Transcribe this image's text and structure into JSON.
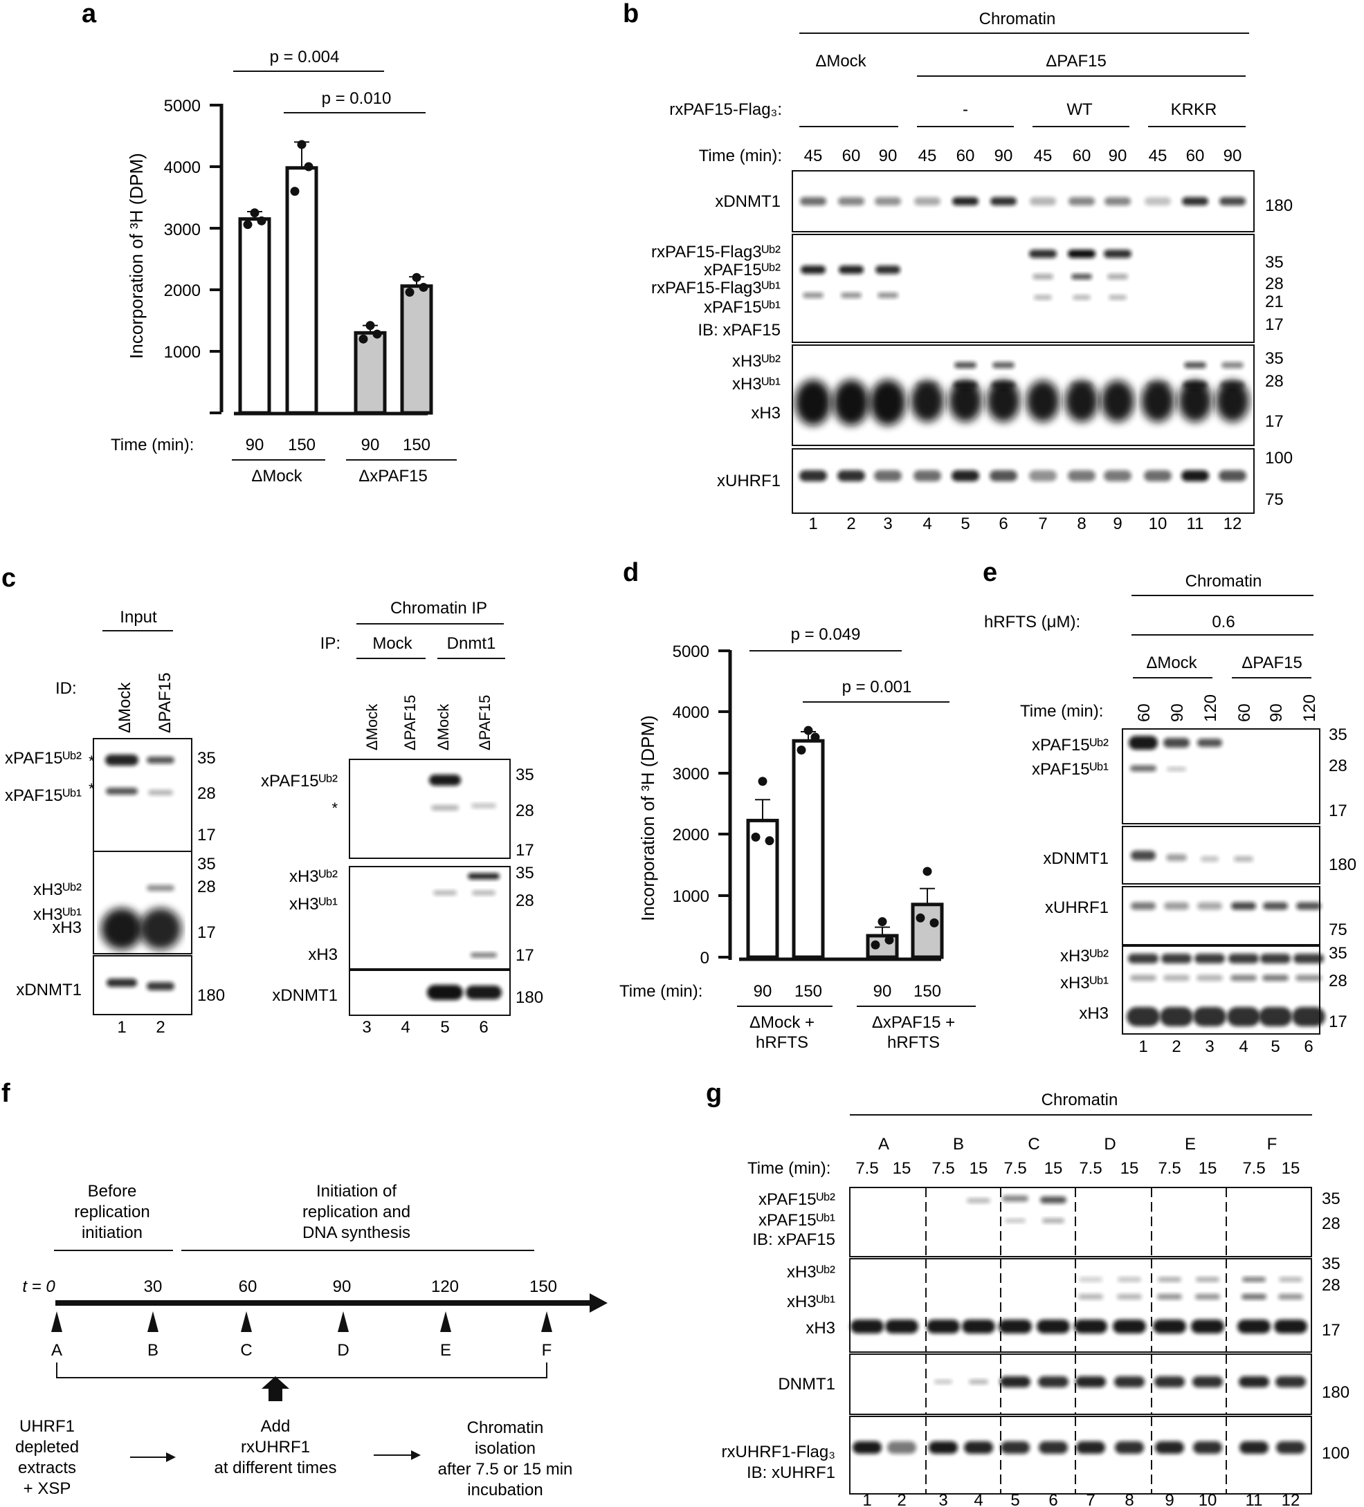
{
  "panels": {
    "a": {
      "label": "a",
      "ylabel": "Incorporation of ³H (DPM)",
      "yticks": [
        "5000",
        "4000",
        "3000",
        "2000",
        "1000"
      ],
      "time_label": "Time (min):",
      "times": [
        "90",
        "150",
        "90",
        "150"
      ],
      "groups": [
        "ΔMock",
        "ΔxPAF15"
      ],
      "pvals": [
        "p = 0.004",
        "p = 0.010"
      ]
    },
    "b": {
      "label": "b",
      "title": "Chromatin",
      "groups": [
        "ΔMock",
        "ΔPAF15"
      ],
      "rx_label": "rxPAF15-Flag₃:",
      "rx_groups": [
        "-",
        "WT",
        "KRKR"
      ],
      "time_label": "Time (min):",
      "times": [
        "45",
        "60",
        "90",
        "45",
        "60",
        "90",
        "45",
        "60",
        "90",
        "45",
        "60",
        "90"
      ],
      "rows": {
        "xdnmt1": "xDNMT1",
        "paf_labels": [
          "rxPAF15-Flag3ᵁᵇ²",
          "xPAF15ᵁᵇ²",
          "rxPAF15-Flag3ᵁᵇ¹",
          "xPAF15ᵁᵇ¹",
          "IB: xPAF15"
        ],
        "h3_labels": [
          "xH3ᵁᵇ²",
          "xH3ᵁᵇ¹",
          "xH3"
        ],
        "xuhrf1": "xUHRF1"
      },
      "mw": [
        "180",
        "35",
        "28",
        "21",
        "17",
        "35",
        "28",
        "17",
        "100",
        "75"
      ],
      "lanes": [
        "1",
        "2",
        "3",
        "4",
        "5",
        "6",
        "7",
        "8",
        "9",
        "10",
        "11",
        "12"
      ]
    },
    "c": {
      "label": "c",
      "input_title": "Input",
      "id_label": "ID:",
      "input_cols": [
        "ΔMock",
        "ΔPAF15"
      ],
      "ip_title": "Chromatin IP",
      "ip_label": "IP:",
      "ip_groups": [
        "Mock",
        "Dnmt1"
      ],
      "ip_cols": [
        "ΔMock",
        "ΔPAF15",
        "ΔMock",
        "ΔPAF15"
      ],
      "row_labels": [
        "xPAF15ᵁᵇ²",
        "xPAF15ᵁᵇ¹",
        "xH3ᵁᵇ²",
        "xH3ᵁᵇ¹",
        "xH3",
        "xDNMT1"
      ],
      "ip_row_labels": [
        "xPAF15ᵁᵇ²",
        "xH3ᵁᵇ²",
        "xH3ᵁᵇ¹",
        "xH3",
        "xDNMT1"
      ],
      "mw": [
        "35",
        "28",
        "17",
        "35",
        "28",
        "17",
        "180"
      ],
      "lanes": [
        "1",
        "2",
        "3",
        "4",
        "5",
        "6"
      ],
      "star": "*"
    },
    "d": {
      "label": "d",
      "ylabel": "Incorporation of ³H (DPM)",
      "yticks": [
        "5000",
        "4000",
        "3000",
        "2000",
        "1000",
        "0"
      ],
      "time_label": "Time (min):",
      "times": [
        "90",
        "150",
        "90",
        "150"
      ],
      "groups": [
        "ΔMock +",
        "hRFTS",
        "ΔxPAF15 +",
        "hRFTS"
      ],
      "pvals": [
        "p = 0.049",
        "p = 0.001"
      ]
    },
    "e": {
      "label": "e",
      "title": "Chromatin",
      "hrfts_label": "hRFTS (μM):",
      "hrfts_value": "0.6",
      "groups": [
        "ΔMock",
        "ΔPAF15"
      ],
      "time_label": "Time (min):",
      "times": [
        "60",
        "90",
        "120",
        "60",
        "90",
        "120"
      ],
      "row_labels": [
        "xPAF15ᵁᵇ²",
        "xPAF15ᵁᵇ¹",
        "xDNMT1",
        "xUHRF1",
        "xH3ᵁᵇ²",
        "xH3ᵁᵇ¹",
        "xH3"
      ],
      "mw": [
        "35",
        "28",
        "17",
        "180",
        "75",
        "35",
        "28",
        "17"
      ],
      "lanes": [
        "1",
        "2",
        "3",
        "4",
        "5",
        "6"
      ]
    },
    "f": {
      "label": "f",
      "phase1": [
        "Before",
        "replication",
        "initiation"
      ],
      "phase2": [
        "Initiation of",
        "replication and",
        "DNA synthesis"
      ],
      "t_label": "t = 0",
      "ticks": [
        "30",
        "60",
        "90",
        "120",
        "150"
      ],
      "points": [
        "A",
        "B",
        "C",
        "D",
        "E",
        "F"
      ],
      "step1": [
        "UHRF1",
        "depleted",
        "extracts",
        "+ XSP"
      ],
      "step2": [
        "Add",
        "rxUHRF1",
        "at different times"
      ],
      "step3": [
        "Chromatin",
        "isolation",
        "after 7.5 or 15 min",
        "incubation"
      ]
    },
    "g": {
      "label": "g",
      "title": "Chromatin",
      "conds": [
        "A",
        "B",
        "C",
        "D",
        "E",
        "F"
      ],
      "time_label": "Time (min):",
      "times": [
        "7.5",
        "15",
        "7.5",
        "15",
        "7.5",
        "15",
        "7.5",
        "15",
        "7.5",
        "15",
        "7.5",
        "15"
      ],
      "row_labels": [
        "xPAF15ᵁᵇ²",
        "xPAF15ᵁᵇ¹",
        "IB: xPAF15",
        "xH3ᵁᵇ²",
        "xH3ᵁᵇ¹",
        "xH3",
        "DNMT1",
        "rxUHRF1-Flag₃",
        "IB: xUHRF1"
      ],
      "mw": [
        "35",
        "28",
        "35",
        "28",
        "17",
        "180",
        "100"
      ],
      "lanes": [
        "1",
        "2",
        "3",
        "4",
        "5",
        "6",
        "7",
        "8",
        "9",
        "10",
        "11",
        "12"
      ]
    }
  },
  "chart_data": [
    {
      "type": "bar",
      "panel": "a",
      "categories": [
        "90",
        "150",
        "90",
        "150"
      ],
      "ylabel": "Incorporation of ³H (DPM)",
      "ylim": [
        0,
        5000
      ],
      "values": [
        3150,
        3980,
        1300,
        2060
      ],
      "errors": [
        120,
        420,
        120,
        150
      ],
      "points": [
        [
          3060,
          3250,
          3120
        ],
        [
          3600,
          4360,
          4000
        ],
        [
          1200,
          1420,
          1280
        ],
        [
          1960,
          2200,
          2040
        ]
      ],
      "colors": [
        "#ffffff",
        "#ffffff",
        "#c8c8c8",
        "#c8c8c8"
      ]
    },
    {
      "type": "bar",
      "panel": "d",
      "categories": [
        "90",
        "150",
        "90",
        "150"
      ],
      "ylabel": "Incorporation of ³H (DPM)",
      "ylim": [
        0,
        5000
      ],
      "values": [
        2230,
        3530,
        350,
        860
      ],
      "errors": [
        340,
        150,
        140,
        260
      ],
      "points": [
        [
          1960,
          2870,
          1900
        ],
        [
          3380,
          3700,
          3590
        ],
        [
          200,
          580,
          280
        ],
        [
          640,
          1400,
          560
        ]
      ],
      "colors": [
        "#ffffff",
        "#ffffff",
        "#c8c8c8",
        "#c8c8c8"
      ]
    }
  ]
}
